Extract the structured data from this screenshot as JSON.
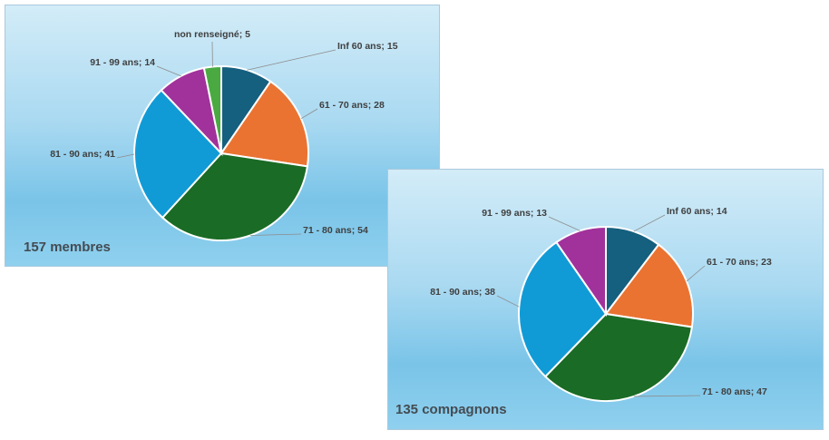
{
  "colors": {
    "inf60": "#155f7f",
    "r61_70": "#ea7331",
    "r71_80": "#1a6b25",
    "r81_90": "#119bd6",
    "r91_99": "#a1319b",
    "nr": "#4aaa41"
  },
  "chart_data": [
    {
      "type": "pie",
      "caption": "157 membres",
      "slices": [
        {
          "label": "Inf 60 ans; 15",
          "value": 15,
          "color_key": "inf60"
        },
        {
          "label": "61 - 70 ans; 28",
          "value": 28,
          "color_key": "r61_70"
        },
        {
          "label": "71 - 80 ans; 54",
          "value": 54,
          "color_key": "r71_80"
        },
        {
          "label": "81 - 90 ans; 41",
          "value": 41,
          "color_key": "r81_90"
        },
        {
          "label": "91 - 99 ans; 14",
          "value": 14,
          "color_key": "r91_99"
        },
        {
          "label": "non renseigné; 5",
          "value": 5,
          "color_key": "nr"
        }
      ]
    },
    {
      "type": "pie",
      "caption": "135 compagnons",
      "slices": [
        {
          "label": "Inf 60 ans; 14",
          "value": 14,
          "color_key": "inf60"
        },
        {
          "label": "61 - 70 ans; 23",
          "value": 23,
          "color_key": "r61_70"
        },
        {
          "label": "71 - 80 ans; 47",
          "value": 47,
          "color_key": "r71_80"
        },
        {
          "label": "81 - 90 ans; 38",
          "value": 38,
          "color_key": "r81_90"
        },
        {
          "label": "91 - 99 ans; 13",
          "value": 13,
          "color_key": "r91_99"
        }
      ]
    }
  ]
}
